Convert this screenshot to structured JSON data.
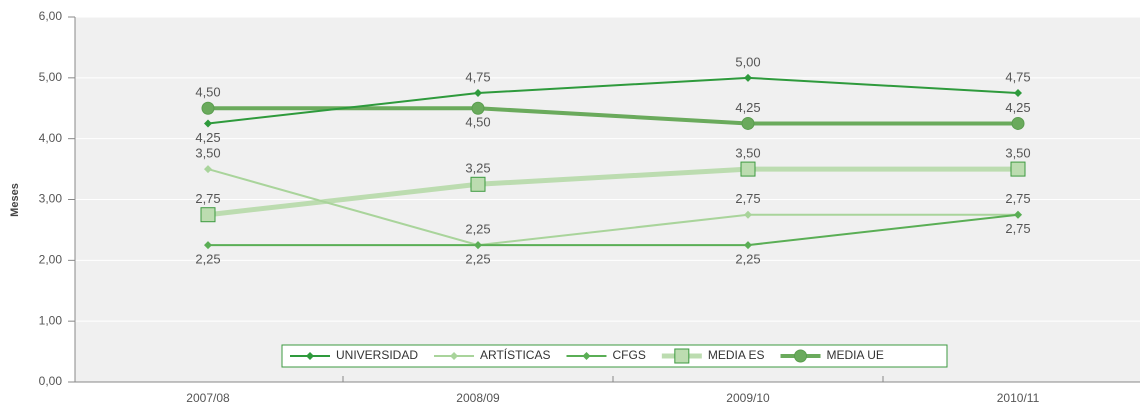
{
  "chart_data": {
    "type": "line",
    "y_label": "Meses",
    "categories": [
      "2007/08",
      "2008/09",
      "2009/10",
      "2010/11"
    ],
    "series": [
      {
        "name": "UNIVERSIDAD",
        "color": "#2e9a3c",
        "marker": "diamond",
        "width": 2,
        "values": [
          4.25,
          4.75,
          5.0,
          4.75
        ],
        "value_labels": [
          "4,25",
          "4,75",
          "5,00",
          "4,75"
        ]
      },
      {
        "name": "ARTÍSTICAS",
        "color": "#a9d49b",
        "marker": "diamond",
        "width": 2,
        "values": [
          3.5,
          2.25,
          2.75,
          2.75
        ],
        "value_labels": [
          "3,50",
          "2,25",
          "2,75",
          "2,75"
        ]
      },
      {
        "name": "CFGS",
        "color": "#5aae55",
        "marker": "diamond",
        "width": 2,
        "values": [
          2.25,
          2.25,
          2.25,
          2.75
        ],
        "value_labels": [
          "2,25",
          "2,25",
          "2,25",
          "2,75"
        ]
      },
      {
        "name": "MEDIA ES",
        "color": "#bcdcb0",
        "marker": "square",
        "width": 5,
        "values": [
          2.75,
          3.25,
          3.5,
          3.5
        ],
        "value_labels": [
          "2,75",
          "3,25",
          "3,50",
          "3,50"
        ]
      },
      {
        "name": "MEDIA UE",
        "color": "#6aaa5c",
        "marker": "circle",
        "width": 4,
        "values": [
          4.5,
          4.5,
          4.25,
          4.25
        ],
        "value_labels": [
          "4,50",
          "4,50",
          "4,25",
          "4,25"
        ]
      }
    ],
    "ylim": [
      0,
      6
    ],
    "yticks": [
      {
        "value": 0,
        "label": "0,00"
      },
      {
        "value": 1,
        "label": "1,00"
      },
      {
        "value": 2,
        "label": "2,00"
      },
      {
        "value": 3,
        "label": "3,00"
      },
      {
        "value": 4,
        "label": "4,00"
      },
      {
        "value": 5,
        "label": "5,00"
      },
      {
        "value": 6,
        "label": "6,00"
      }
    ],
    "grid": true,
    "legend": "bottom"
  }
}
